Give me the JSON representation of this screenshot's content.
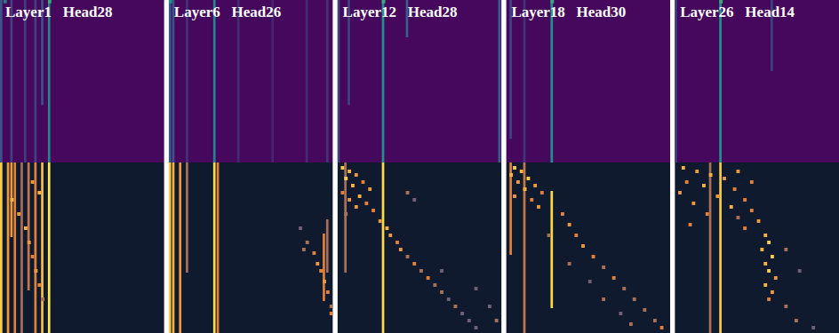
{
  "chart_data": [
    {
      "type": "heatmap",
      "title": "Layer1   Head28",
      "size": 48,
      "zlim": [
        0,
        1
      ],
      "maps": [
        {
          "stripes": [
            [
              0,
              0,
              47,
              0.25
            ],
            [
              3,
              0,
              47,
              0.2
            ],
            [
              7,
              0,
              47,
              0.18
            ],
            [
              10,
              0,
              47,
              0.2
            ],
            [
              12,
              0,
              30,
              0.25
            ],
            [
              14,
              0,
              47,
              0.45
            ]
          ],
          "cells": [
            [
              0,
              14,
              0.6
            ],
            [
              0,
              1,
              0.4
            ]
          ]
        },
        {
          "stripes": [
            [
              0,
              0,
              47,
              0.9
            ],
            [
              2,
              0,
              47,
              0.7
            ],
            [
              3,
              0,
              20,
              0.7
            ],
            [
              4,
              0,
              47,
              0.6
            ],
            [
              6,
              0,
              47,
              0.5
            ],
            [
              8,
              0,
              35,
              0.55
            ],
            [
              10,
              0,
              47,
              0.6
            ],
            [
              12,
              0,
              47,
              0.85
            ],
            [
              14,
              0,
              47,
              1.0
            ]
          ],
          "cells": [
            [
              5,
              9,
              0.7
            ],
            [
              8,
              11,
              0.8
            ],
            [
              10,
              3,
              0.8
            ],
            [
              14,
              5,
              0.7
            ],
            [
              18,
              7,
              0.8
            ],
            [
              22,
              8,
              0.7
            ],
            [
              26,
              9,
              0.6
            ],
            [
              30,
              10,
              0.7
            ],
            [
              34,
              11,
              0.6
            ],
            [
              38,
              12,
              0.5
            ]
          ]
        }
      ]
    },
    {
      "type": "heatmap",
      "title": "Layer6   Head26",
      "size": 48,
      "zlim": [
        0,
        1
      ],
      "maps": [
        {
          "stripes": [
            [
              0,
              0,
              47,
              0.3
            ],
            [
              1,
              0,
              47,
              0.25
            ],
            [
              5,
              0,
              47,
              0.15
            ],
            [
              13,
              0,
              47,
              0.45
            ],
            [
              20,
              0,
              47,
              0.12
            ],
            [
              30,
              0,
              47,
              0.1
            ],
            [
              40,
              0,
              47,
              0.12
            ],
            [
              46,
              0,
              47,
              0.15
            ]
          ],
          "cells": [
            [
              0,
              0,
              0.5
            ]
          ]
        },
        {
          "stripes": [
            [
              0,
              0,
              47,
              0.9
            ],
            [
              1,
              0,
              47,
              0.8
            ],
            [
              3,
              0,
              47,
              0.7
            ],
            [
              5,
              0,
              30,
              0.5
            ],
            [
              13,
              0,
              47,
              0.95
            ],
            [
              14,
              0,
              47,
              0.6
            ],
            [
              45,
              20,
              38,
              0.6
            ],
            [
              46,
              16,
              30,
              0.5
            ]
          ],
          "cells": [
            [
              18,
              38,
              0.4
            ],
            [
              22,
              40,
              0.5
            ],
            [
              24,
              39,
              0.5
            ],
            [
              25,
              42,
              0.6
            ],
            [
              28,
              43,
              0.7
            ],
            [
              30,
              44,
              0.6
            ],
            [
              33,
              45,
              0.7
            ],
            [
              36,
              46,
              0.6
            ],
            [
              40,
              47,
              0.5
            ],
            [
              42,
              47,
              0.6
            ]
          ]
        }
      ]
    },
    {
      "type": "heatmap",
      "title": "Layer12   Head28",
      "size": 48,
      "zlim": [
        0,
        1
      ],
      "maps": [
        {
          "stripes": [
            [
              0,
              0,
              47,
              0.2
            ],
            [
              3,
              0,
              30,
              0.2
            ],
            [
              13,
              0,
              47,
              0.5
            ],
            [
              20,
              0,
              10,
              0.3
            ],
            [
              47,
              0,
              47,
              0.3
            ]
          ],
          "cells": [
            [
              0,
              13,
              0.6
            ]
          ]
        },
        {
          "stripes": [
            [
              2,
              0,
              30,
              0.5
            ],
            [
              13,
              0,
              47,
              0.95
            ]
          ],
          "cells": [
            [
              1,
              1,
              0.9
            ],
            [
              2,
              3,
              0.8
            ],
            [
              3,
              5,
              0.7
            ],
            [
              4,
              2,
              0.9
            ],
            [
              5,
              7,
              0.6
            ],
            [
              6,
              4,
              0.8
            ],
            [
              7,
              9,
              0.7
            ],
            [
              8,
              1,
              0.6
            ],
            [
              9,
              6,
              0.8
            ],
            [
              10,
              3,
              0.7
            ],
            [
              11,
              8,
              0.6
            ],
            [
              12,
              5,
              0.7
            ],
            [
              13,
              10,
              0.6
            ],
            [
              14,
              2,
              0.5
            ],
            [
              16,
              12,
              0.7
            ],
            [
              18,
              14,
              0.8
            ],
            [
              20,
              15,
              0.7
            ],
            [
              22,
              17,
              0.6
            ],
            [
              24,
              18,
              0.7
            ],
            [
              26,
              20,
              0.5
            ],
            [
              28,
              22,
              0.6
            ],
            [
              30,
              24,
              0.5
            ],
            [
              32,
              26,
              0.6
            ],
            [
              34,
              28,
              0.5
            ],
            [
              36,
              30,
              0.5
            ],
            [
              38,
              32,
              0.4
            ],
            [
              40,
              34,
              0.5
            ],
            [
              42,
              36,
              0.4
            ],
            [
              44,
              38,
              0.4
            ],
            [
              46,
              40,
              0.4
            ],
            [
              30,
              30,
              0.4
            ],
            [
              35,
              40,
              0.4
            ],
            [
              40,
              44,
              0.4
            ],
            [
              44,
              46,
              0.5
            ],
            [
              8,
              20,
              0.5
            ],
            [
              10,
              22,
              0.4
            ]
          ]
        }
      ]
    },
    {
      "type": "heatmap",
      "title": "Layer18   Head30",
      "size": 48,
      "zlim": [
        0,
        1
      ],
      "maps": [
        {
          "stripes": [
            [
              1,
              0,
              40,
              0.2
            ],
            [
              5,
              0,
              47,
              0.15
            ],
            [
              13,
              0,
              47,
              0.5
            ]
          ],
          "cells": [
            [
              0,
              13,
              0.6
            ]
          ]
        },
        {
          "stripes": [
            [
              1,
              0,
              25,
              0.6
            ],
            [
              5,
              0,
              47,
              0.55
            ],
            [
              13,
              8,
              40,
              0.95
            ]
          ],
          "cells": [
            [
              1,
              2,
              0.9
            ],
            [
              2,
              4,
              0.8
            ],
            [
              3,
              1,
              0.8
            ],
            [
              4,
              6,
              0.9
            ],
            [
              5,
              3,
              0.7
            ],
            [
              6,
              8,
              0.7
            ],
            [
              7,
              5,
              0.8
            ],
            [
              8,
              10,
              0.6
            ],
            [
              9,
              2,
              0.7
            ],
            [
              10,
              7,
              0.6
            ],
            [
              12,
              9,
              0.7
            ],
            [
              14,
              16,
              0.6
            ],
            [
              17,
              18,
              0.7
            ],
            [
              20,
              20,
              0.6
            ],
            [
              23,
              22,
              0.7
            ],
            [
              26,
              25,
              0.6
            ],
            [
              29,
              28,
              0.5
            ],
            [
              32,
              31,
              0.6
            ],
            [
              35,
              34,
              0.5
            ],
            [
              38,
              37,
              0.5
            ],
            [
              41,
              40,
              0.5
            ],
            [
              44,
              43,
              0.5
            ],
            [
              46,
              45,
              0.6
            ],
            [
              20,
              12,
              0.5
            ],
            [
              28,
              18,
              0.5
            ],
            [
              33,
              24,
              0.4
            ],
            [
              38,
              28,
              0.5
            ],
            [
              42,
              33,
              0.4
            ],
            [
              45,
              36,
              0.5
            ]
          ]
        }
      ]
    },
    {
      "type": "heatmap",
      "title": "Layer26   Head14",
      "size": 48,
      "zlim": [
        0,
        1
      ],
      "maps": [
        {
          "stripes": [
            [
              0,
              0,
              47,
              0.18
            ],
            [
              13,
              0,
              47,
              0.5
            ],
            [
              28,
              0,
              20,
              0.2
            ]
          ],
          "cells": [
            [
              0,
              13,
              0.6
            ]
          ]
        },
        {
          "stripes": [
            [
              10,
              0,
              47,
              0.5
            ],
            [
              13,
              0,
              47,
              0.9
            ]
          ],
          "cells": [
            [
              1,
              2,
              0.8
            ],
            [
              2,
              6,
              0.7
            ],
            [
              2,
              18,
              0.7
            ],
            [
              3,
              10,
              0.8
            ],
            [
              4,
              14,
              0.7
            ],
            [
              5,
              3,
              0.6
            ],
            [
              5,
              22,
              0.6
            ],
            [
              6,
              8,
              0.8
            ],
            [
              7,
              17,
              0.6
            ],
            [
              8,
              1,
              0.7
            ],
            [
              9,
              12,
              0.7
            ],
            [
              10,
              20,
              0.6
            ],
            [
              11,
              5,
              0.7
            ],
            [
              12,
              16,
              0.8
            ],
            [
              13,
              22,
              0.6
            ],
            [
              14,
              9,
              0.6
            ],
            [
              15,
              18,
              0.5
            ],
            [
              16,
              24,
              0.7
            ],
            [
              17,
              4,
              0.6
            ],
            [
              18,
              20,
              0.6
            ],
            [
              20,
              26,
              0.8
            ],
            [
              22,
              27,
              0.9
            ],
            [
              24,
              25,
              0.8
            ],
            [
              26,
              28,
              0.9
            ],
            [
              28,
              26,
              0.8
            ],
            [
              30,
              27,
              0.9
            ],
            [
              32,
              29,
              0.7
            ],
            [
              34,
              26,
              0.8
            ],
            [
              36,
              28,
              0.7
            ],
            [
              38,
              27,
              0.6
            ],
            [
              40,
              32,
              0.5
            ],
            [
              44,
              35,
              0.5
            ],
            [
              46,
              40,
              0.4
            ],
            [
              30,
              36,
              0.4
            ],
            [
              24,
              32,
              0.5
            ]
          ]
        }
      ]
    }
  ]
}
